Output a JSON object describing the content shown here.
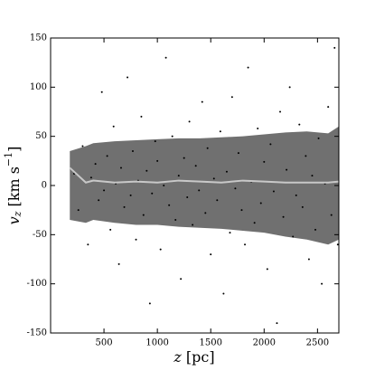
{
  "chart_data": {
    "type": "scatter",
    "xlabel": {
      "var": "z",
      "unit": "[pc]"
    },
    "ylabel": {
      "var": "v",
      "sub": "z",
      "unit": "[km s",
      "sup": "−1",
      "close": "]"
    },
    "xlim": [
      0,
      2700
    ],
    "ylim": [
      -150,
      150
    ],
    "xticks": [
      500,
      1000,
      1500,
      2000,
      2500
    ],
    "yticks": [
      -150,
      -100,
      -50,
      0,
      50,
      100,
      150
    ],
    "points": {
      "color": "#000000",
      "x": [
        220,
        260,
        300,
        350,
        380,
        420,
        450,
        480,
        500,
        530,
        560,
        590,
        610,
        640,
        660,
        690,
        720,
        750,
        770,
        800,
        820,
        850,
        870,
        900,
        930,
        950,
        980,
        1000,
        1030,
        1060,
        1080,
        1110,
        1140,
        1170,
        1200,
        1220,
        1250,
        1280,
        1300,
        1330,
        1360,
        1390,
        1420,
        1450,
        1470,
        1500,
        1530,
        1560,
        1590,
        1620,
        1650,
        1680,
        1700,
        1730,
        1760,
        1790,
        1820,
        1850,
        1880,
        1910,
        1940,
        1970,
        2000,
        2030,
        2060,
        2090,
        2120,
        2150,
        2180,
        2210,
        2240,
        2270,
        2300,
        2330,
        2360,
        2390,
        2420,
        2450,
        2480,
        2510,
        2540,
        2570,
        2600,
        2630,
        2660,
        2690
      ],
      "y": [
        12,
        -25,
        40,
        -60,
        8,
        22,
        -15,
        95,
        -5,
        30,
        -45,
        60,
        2,
        -80,
        18,
        -22,
        110,
        -10,
        35,
        -55,
        5,
        70,
        -30,
        15,
        -120,
        -8,
        45,
        25,
        -65,
        0,
        130,
        -20,
        50,
        -35,
        10,
        -95,
        28,
        -12,
        65,
        -40,
        20,
        -5,
        85,
        -28,
        38,
        -70,
        7,
        -15,
        55,
        -110,
        14,
        -48,
        90,
        -3,
        33,
        -25,
        -60,
        120,
        4,
        -38,
        58,
        -18,
        24,
        -85,
        42,
        -6,
        -140,
        75,
        -32,
        16,
        100,
        -52,
        -10,
        62,
        -22,
        30,
        -75,
        10,
        -45,
        48,
        -100,
        2,
        80,
        -30,
        140,
        -60
      ]
    },
    "band": {
      "color": "#707070",
      "x": [
        180,
        330,
        400,
        600,
        800,
        1000,
        1200,
        1400,
        1600,
        1800,
        2000,
        2200,
        2400,
        2600,
        2700
      ],
      "upper": [
        35,
        40,
        43,
        45,
        46,
        47,
        48,
        48,
        49,
        50,
        52,
        54,
        55,
        53,
        60
      ],
      "lower": [
        -35,
        -38,
        -35,
        -38,
        -40,
        -40,
        -42,
        -43,
        -44,
        -46,
        -48,
        -52,
        -55,
        -60,
        -55
      ]
    },
    "median": {
      "color": "#c8c8c8",
      "x": [
        180,
        330,
        400,
        600,
        800,
        1000,
        1200,
        1400,
        1600,
        1800,
        2000,
        2200,
        2400,
        2600,
        2700
      ],
      "values": [
        18,
        3,
        5,
        3,
        4,
        3,
        5,
        4,
        3,
        5,
        4,
        3,
        3,
        3,
        4
      ]
    }
  }
}
